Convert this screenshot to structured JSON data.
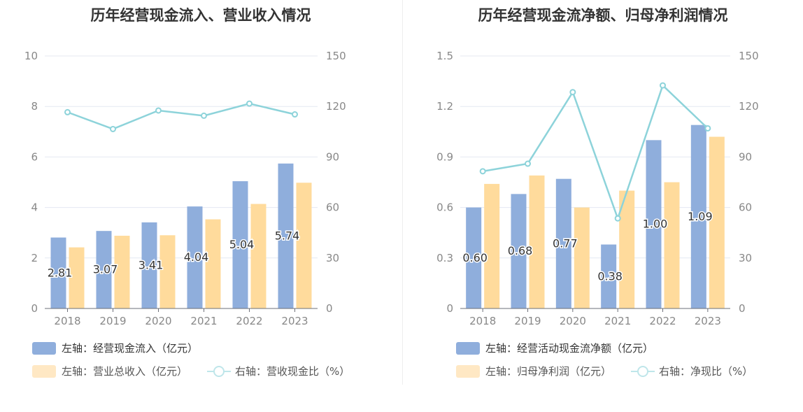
{
  "colors": {
    "bar_primary": "#8FAEDC",
    "bar_secondary": "#FFDB9C",
    "line": "#8DD3DA",
    "grid": "#E4E8F2",
    "axis_text": "#888888",
    "data_label": "#333333"
  },
  "chart_data": [
    {
      "type": "bar",
      "title": "历年经营现金流入、营业收入情况",
      "categories": [
        "2018",
        "2019",
        "2020",
        "2021",
        "2022",
        "2023"
      ],
      "y_left": {
        "ticks": [
          "0",
          "2",
          "4",
          "6",
          "8",
          "10"
        ],
        "lim": [
          0,
          10
        ]
      },
      "y_right": {
        "ticks": [
          "0",
          "30",
          "60",
          "90",
          "120",
          "150"
        ],
        "lim": [
          0,
          150
        ]
      },
      "series": [
        {
          "name": "左轴：经营现金流入（亿元）",
          "kind": "bar",
          "axis": "left",
          "values": [
            2.81,
            3.07,
            3.41,
            4.04,
            5.04,
            5.74
          ],
          "labels": [
            "2.81",
            "3.07",
            "3.41",
            "4.04",
            "5.04",
            "5.74"
          ]
        },
        {
          "name": "左轴：营业总收入（亿元）",
          "kind": "bar",
          "axis": "left",
          "values": [
            2.42,
            2.88,
            2.9,
            3.53,
            4.14,
            4.98
          ]
        },
        {
          "name": "右轴：营收现金比（%）",
          "kind": "line",
          "axis": "right",
          "values": [
            116.6,
            106.6,
            117.6,
            114.5,
            121.7,
            115.3
          ]
        }
      ]
    },
    {
      "type": "bar",
      "title": "历年经营现金流净额、归母净利润情况",
      "categories": [
        "2018",
        "2019",
        "2020",
        "2021",
        "2022",
        "2023"
      ],
      "y_left": {
        "ticks": [
          "0",
          "0.3",
          "0.6",
          "0.9",
          "1.2",
          "1.5"
        ],
        "lim": [
          0,
          1.5
        ]
      },
      "y_right": {
        "ticks": [
          "0",
          "30",
          "60",
          "90",
          "120",
          "150"
        ],
        "lim": [
          0,
          150
        ]
      },
      "series": [
        {
          "name": "左轴：经营活动现金流净额（亿元）",
          "kind": "bar",
          "axis": "left",
          "values": [
            0.6,
            0.68,
            0.77,
            0.38,
            1.0,
            1.09
          ],
          "labels": [
            "0.60",
            "0.68",
            "0.77",
            "0.38",
            "1.00",
            "1.09"
          ]
        },
        {
          "name": "左轴：归母净利润（亿元）",
          "kind": "bar",
          "axis": "left",
          "values": [
            0.74,
            0.79,
            0.6,
            0.7,
            0.75,
            1.02
          ]
        },
        {
          "name": "右轴：净现比（%）",
          "kind": "line",
          "axis": "right",
          "values": [
            81.5,
            86.0,
            128.5,
            53.5,
            132.5,
            107.0
          ]
        }
      ]
    }
  ]
}
